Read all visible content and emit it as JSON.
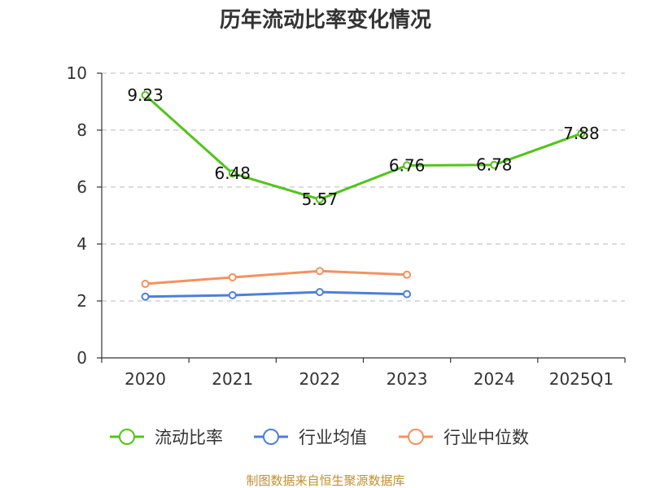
{
  "chart_data": {
    "type": "line",
    "title": "历年流动比率变化情况",
    "categories": [
      "2020",
      "2021",
      "2022",
      "2023",
      "2024",
      "2025Q1"
    ],
    "ylim": [
      0,
      10
    ],
    "yticks": [
      0,
      2,
      4,
      6,
      8,
      10
    ],
    "grid": true,
    "legend_position": "bottom",
    "series": [
      {
        "name": "流动比率",
        "color": "#52c41a",
        "values": [
          9.23,
          6.48,
          5.57,
          6.76,
          6.78,
          7.88
        ],
        "show_labels": true
      },
      {
        "name": "行业均值",
        "color": "#4e7fd9",
        "values": [
          2.15,
          2.2,
          2.31,
          2.24,
          null,
          null
        ],
        "show_labels": false
      },
      {
        "name": "行业中位数",
        "color": "#f59160",
        "values": [
          2.6,
          2.83,
          3.05,
          2.92,
          null,
          null
        ],
        "show_labels": false
      }
    ]
  },
  "source_text": "制图数据来自恒生聚源数据库"
}
